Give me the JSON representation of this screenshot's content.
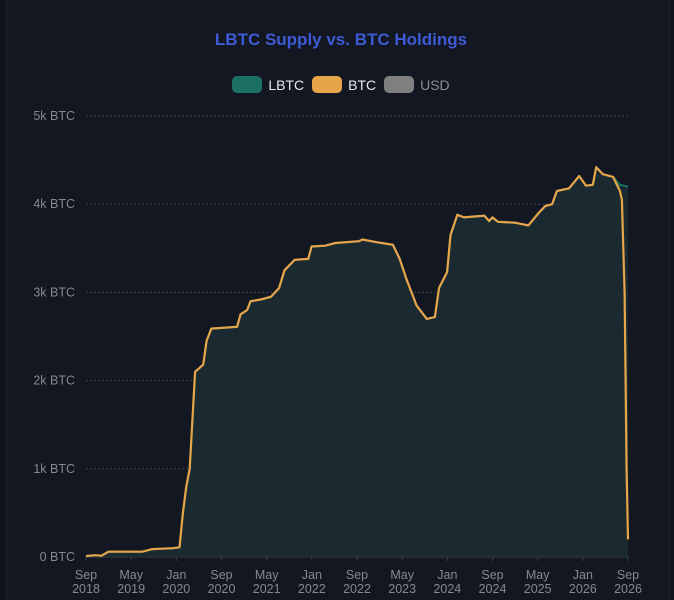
{
  "chart_data": {
    "type": "area",
    "title": "LBTC Supply vs. BTC Holdings",
    "legend": [
      {
        "name": "LBTC",
        "color": "#1c6f63",
        "hidden": false
      },
      {
        "name": "BTC",
        "color": "#e7a54a",
        "hidden": false
      },
      {
        "name": "USD",
        "color": "#7f7f7f",
        "hidden": true
      }
    ],
    "y_ticks": [
      "0 BTC",
      "1k BTC",
      "2k BTC",
      "3k BTC",
      "4k BTC",
      "5k BTC"
    ],
    "ylim": [
      0,
      5000
    ],
    "x_ticks": [
      [
        "Sep",
        "2018"
      ],
      [
        "May",
        "2019"
      ],
      [
        "Jan",
        "2020"
      ],
      [
        "Sep",
        "2020"
      ],
      [
        "May",
        "2021"
      ],
      [
        "Jan",
        "2022"
      ],
      [
        "Sep",
        "2022"
      ],
      [
        "May",
        "2023"
      ],
      [
        "Jan",
        "2024"
      ],
      [
        "Sep",
        "2024"
      ],
      [
        "May",
        "2025"
      ],
      [
        "Jan",
        "2026"
      ],
      [
        "Sep",
        "2026"
      ]
    ],
    "xlim": [
      2018.67,
      2026.67
    ],
    "grid": true,
    "legend_position": "top-center",
    "series": [
      {
        "name": "BTC",
        "points": [
          [
            2018.67,
            10
          ],
          [
            2018.8,
            20
          ],
          [
            2018.9,
            15
          ],
          [
            2019.0,
            60
          ],
          [
            2019.5,
            60
          ],
          [
            2019.65,
            90
          ],
          [
            2019.95,
            100
          ],
          [
            2020.05,
            110
          ],
          [
            2020.1,
            500
          ],
          [
            2020.15,
            800
          ],
          [
            2020.2,
            1000
          ],
          [
            2020.28,
            2100
          ],
          [
            2020.4,
            2180
          ],
          [
            2020.45,
            2450
          ],
          [
            2020.52,
            2590
          ],
          [
            2020.9,
            2610
          ],
          [
            2020.95,
            2750
          ],
          [
            2021.05,
            2800
          ],
          [
            2021.1,
            2900
          ],
          [
            2021.25,
            2920
          ],
          [
            2021.4,
            2950
          ],
          [
            2021.52,
            3050
          ],
          [
            2021.6,
            3250
          ],
          [
            2021.75,
            3370
          ],
          [
            2021.95,
            3380
          ],
          [
            2022.0,
            3520
          ],
          [
            2022.2,
            3530
          ],
          [
            2022.35,
            3560
          ],
          [
            2022.7,
            3580
          ],
          [
            2022.75,
            3600
          ],
          [
            2022.95,
            3570
          ],
          [
            2023.2,
            3540
          ],
          [
            2023.3,
            3380
          ],
          [
            2023.4,
            3150
          ],
          [
            2023.55,
            2850
          ],
          [
            2023.7,
            2700
          ],
          [
            2023.82,
            2720
          ],
          [
            2023.88,
            3050
          ],
          [
            2024.0,
            3230
          ],
          [
            2024.05,
            3650
          ],
          [
            2024.15,
            3880
          ],
          [
            2024.25,
            3850
          ],
          [
            2024.4,
            3860
          ],
          [
            2024.55,
            3870
          ],
          [
            2024.62,
            3810
          ],
          [
            2024.67,
            3850
          ],
          [
            2024.75,
            3800
          ],
          [
            2025.0,
            3790
          ],
          [
            2025.2,
            3760
          ],
          [
            2025.35,
            3900
          ],
          [
            2025.45,
            3980
          ],
          [
            2025.55,
            4000
          ],
          [
            2025.62,
            4150
          ],
          [
            2025.8,
            4180
          ],
          [
            2025.95,
            4320
          ],
          [
            2026.05,
            4210
          ],
          [
            2026.15,
            4220
          ],
          [
            2026.2,
            4420
          ],
          [
            2026.3,
            4340
          ],
          [
            2026.45,
            4310
          ],
          [
            2026.55,
            4150
          ],
          [
            2026.58,
            4050
          ],
          [
            2026.62,
            3000
          ],
          [
            2026.65,
            1000
          ],
          [
            2026.67,
            200
          ]
        ]
      },
      {
        "name": "LBTC",
        "points": [
          [
            2018.67,
            10
          ],
          [
            2018.8,
            20
          ],
          [
            2018.9,
            15
          ],
          [
            2019.0,
            60
          ],
          [
            2019.5,
            60
          ],
          [
            2019.65,
            90
          ],
          [
            2019.95,
            100
          ],
          [
            2020.05,
            110
          ],
          [
            2020.1,
            500
          ],
          [
            2020.15,
            800
          ],
          [
            2020.2,
            1000
          ],
          [
            2020.28,
            2100
          ],
          [
            2020.4,
            2180
          ],
          [
            2020.45,
            2450
          ],
          [
            2020.52,
            2590
          ],
          [
            2020.9,
            2610
          ],
          [
            2020.95,
            2750
          ],
          [
            2021.05,
            2800
          ],
          [
            2021.1,
            2900
          ],
          [
            2021.25,
            2920
          ],
          [
            2021.4,
            2950
          ],
          [
            2021.52,
            3050
          ],
          [
            2021.6,
            3250
          ],
          [
            2021.75,
            3370
          ],
          [
            2021.95,
            3380
          ],
          [
            2022.0,
            3520
          ],
          [
            2022.2,
            3530
          ],
          [
            2022.35,
            3560
          ],
          [
            2022.7,
            3580
          ],
          [
            2022.75,
            3600
          ],
          [
            2022.95,
            3570
          ],
          [
            2023.2,
            3540
          ],
          [
            2023.3,
            3380
          ],
          [
            2023.4,
            3150
          ],
          [
            2023.55,
            2850
          ],
          [
            2023.7,
            2700
          ],
          [
            2023.82,
            2720
          ],
          [
            2023.88,
            3050
          ],
          [
            2024.0,
            3230
          ],
          [
            2024.05,
            3650
          ],
          [
            2024.15,
            3880
          ],
          [
            2024.25,
            3850
          ],
          [
            2024.4,
            3860
          ],
          [
            2024.55,
            3870
          ],
          [
            2024.62,
            3810
          ],
          [
            2024.67,
            3850
          ],
          [
            2024.75,
            3800
          ],
          [
            2025.0,
            3790
          ],
          [
            2025.2,
            3760
          ],
          [
            2025.35,
            3900
          ],
          [
            2025.45,
            3980
          ],
          [
            2025.55,
            4000
          ],
          [
            2025.62,
            4150
          ],
          [
            2025.8,
            4180
          ],
          [
            2025.95,
            4320
          ],
          [
            2026.05,
            4210
          ],
          [
            2026.15,
            4220
          ],
          [
            2026.2,
            4420
          ],
          [
            2026.3,
            4340
          ],
          [
            2026.45,
            4310
          ],
          [
            2026.55,
            4220
          ],
          [
            2026.67,
            4200
          ]
        ]
      }
    ]
  }
}
